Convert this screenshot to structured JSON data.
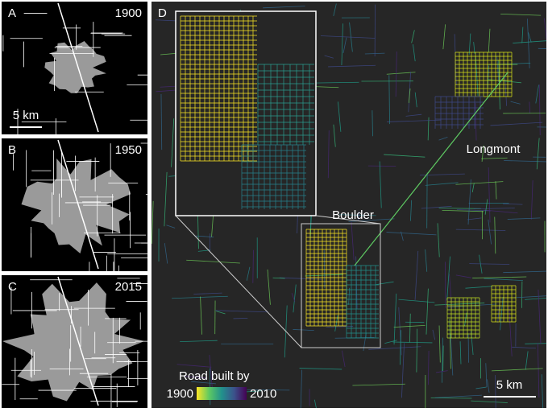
{
  "panels": [
    {
      "label": "A",
      "year": "1900",
      "scale": "5 km"
    },
    {
      "label": "B",
      "year": "1950"
    },
    {
      "label": "C",
      "year": "2015"
    },
    {
      "label": "D",
      "places": [
        "Boulder",
        "Longmont"
      ],
      "scale": "5 km",
      "legend": {
        "title": "Road built by",
        "min": "1900",
        "max": "2010"
      }
    }
  ]
}
